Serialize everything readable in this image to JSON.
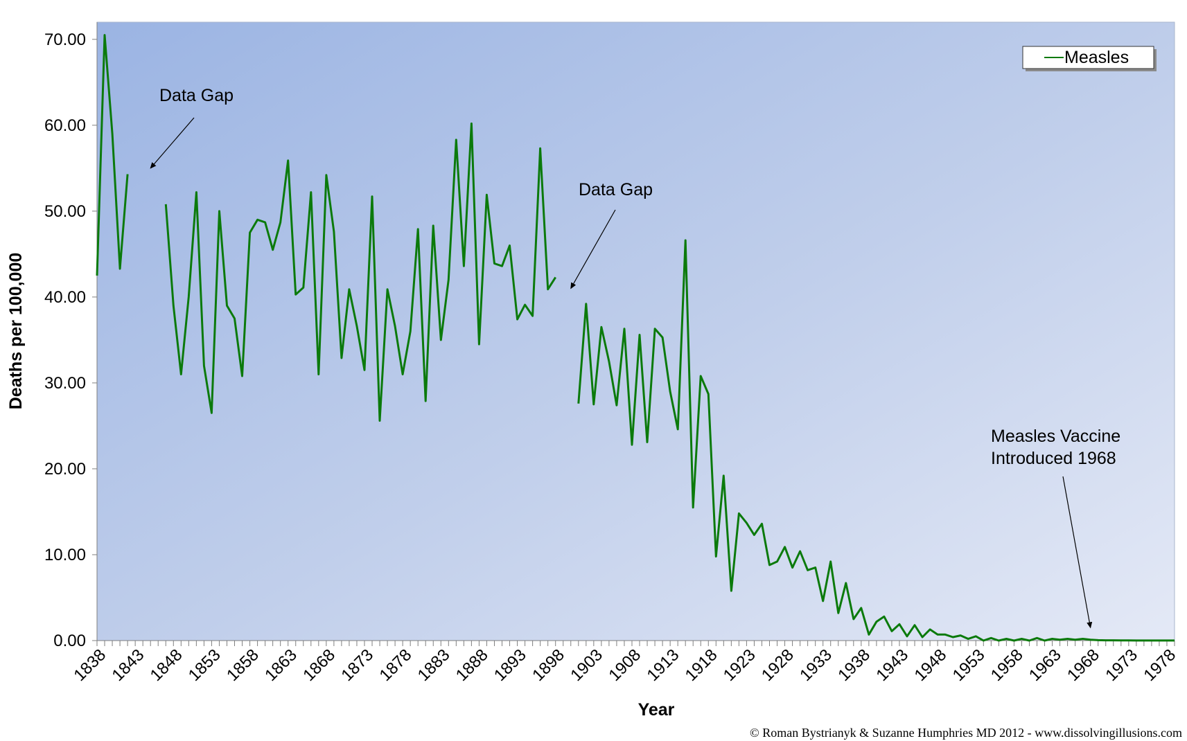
{
  "chart_data": {
    "type": "line",
    "title": "",
    "xlabel": "Year",
    "ylabel": "Deaths per 100,000",
    "xlim": [
      1838,
      1979
    ],
    "ylim": [
      0,
      72
    ],
    "y_ticks": [
      "0.00",
      "10.00",
      "20.00",
      "30.00",
      "40.00",
      "50.00",
      "60.00",
      "70.00"
    ],
    "x_ticks": [
      "1838",
      "1843",
      "1848",
      "1853",
      "1858",
      "1863",
      "1868",
      "1873",
      "1878",
      "1883",
      "1888",
      "1893",
      "1898",
      "1903",
      "1908",
      "1913",
      "1918",
      "1923",
      "1928",
      "1933",
      "1938",
      "1943",
      "1948",
      "1953",
      "1958",
      "1963",
      "1968",
      "1973",
      "1978"
    ],
    "legend": {
      "position": "top-right",
      "entries": [
        "Measles"
      ]
    },
    "grid": false,
    "series": [
      {
        "name": "Measles",
        "color": "#0b7a0b",
        "segments": [
          [
            [
              1838,
              42.5
            ],
            [
              1839,
              70.5
            ],
            [
              1840,
              59.0
            ],
            [
              1841,
              43.3
            ],
            [
              1842,
              54.3
            ]
          ],
          [
            [
              1847,
              50.8
            ],
            [
              1848,
              39.0
            ],
            [
              1849,
              31.0
            ],
            [
              1850,
              40.0
            ],
            [
              1851,
              52.2
            ],
            [
              1852,
              32.0
            ],
            [
              1853,
              26.5
            ],
            [
              1854,
              50.0
            ],
            [
              1855,
              39.0
            ],
            [
              1856,
              37.5
            ],
            [
              1857,
              30.8
            ],
            [
              1858,
              47.5
            ],
            [
              1859,
              49.0
            ],
            [
              1860,
              48.7
            ],
            [
              1861,
              45.5
            ],
            [
              1862,
              48.7
            ],
            [
              1863,
              55.9
            ],
            [
              1864,
              40.3
            ],
            [
              1865,
              41.1
            ],
            [
              1866,
              52.2
            ],
            [
              1867,
              31.0
            ],
            [
              1868,
              54.2
            ],
            [
              1869,
              47.6
            ],
            [
              1870,
              32.9
            ],
            [
              1871,
              40.9
            ],
            [
              1872,
              36.6
            ],
            [
              1873,
              31.5
            ],
            [
              1874,
              51.7
            ],
            [
              1875,
              25.6
            ],
            [
              1876,
              40.9
            ],
            [
              1877,
              36.6
            ],
            [
              1878,
              31.0
            ],
            [
              1879,
              36.0
            ],
            [
              1880,
              47.9
            ],
            [
              1881,
              27.9
            ],
            [
              1882,
              48.3
            ],
            [
              1883,
              35.0
            ],
            [
              1884,
              42.0
            ],
            [
              1885,
              58.3
            ],
            [
              1886,
              43.6
            ],
            [
              1887,
              60.2
            ],
            [
              1888,
              34.5
            ],
            [
              1889,
              51.9
            ],
            [
              1890,
              43.9
            ],
            [
              1891,
              43.6
            ],
            [
              1892,
              46.0
            ],
            [
              1893,
              37.4
            ],
            [
              1894,
              39.1
            ],
            [
              1895,
              37.8
            ],
            [
              1896,
              57.3
            ],
            [
              1897,
              40.9
            ],
            [
              1898,
              42.3
            ]
          ],
          [
            [
              1901,
              27.6
            ],
            [
              1902,
              39.2
            ],
            [
              1903,
              27.5
            ],
            [
              1904,
              36.5
            ],
            [
              1905,
              32.5
            ],
            [
              1906,
              27.4
            ],
            [
              1907,
              36.3
            ],
            [
              1908,
              22.8
            ],
            [
              1909,
              35.6
            ],
            [
              1910,
              23.1
            ],
            [
              1911,
              36.3
            ],
            [
              1912,
              35.3
            ],
            [
              1913,
              29.0
            ],
            [
              1914,
              24.6
            ],
            [
              1915,
              46.6
            ],
            [
              1916,
              15.5
            ],
            [
              1917,
              30.8
            ],
            [
              1918,
              28.7
            ],
            [
              1919,
              9.8
            ],
            [
              1920,
              19.2
            ],
            [
              1921,
              5.8
            ],
            [
              1922,
              14.8
            ],
            [
              1923,
              13.7
            ],
            [
              1924,
              12.3
            ],
            [
              1925,
              13.6
            ],
            [
              1926,
              8.8
            ],
            [
              1927,
              9.2
            ],
            [
              1928,
              10.9
            ],
            [
              1929,
              8.5
            ],
            [
              1930,
              10.4
            ],
            [
              1931,
              8.2
            ],
            [
              1932,
              8.5
            ],
            [
              1933,
              4.6
            ],
            [
              1934,
              9.2
            ],
            [
              1935,
              3.2
            ],
            [
              1936,
              6.7
            ],
            [
              1937,
              2.5
            ],
            [
              1938,
              3.8
            ],
            [
              1939,
              0.7
            ],
            [
              1940,
              2.2
            ],
            [
              1941,
              2.8
            ],
            [
              1942,
              1.1
            ],
            [
              1943,
              1.9
            ],
            [
              1944,
              0.5
            ],
            [
              1945,
              1.8
            ],
            [
              1946,
              0.4
            ],
            [
              1947,
              1.3
            ],
            [
              1948,
              0.7
            ],
            [
              1949,
              0.7
            ],
            [
              1950,
              0.4
            ],
            [
              1951,
              0.6
            ],
            [
              1952,
              0.2
            ],
            [
              1953,
              0.5
            ],
            [
              1954,
              0.0
            ],
            [
              1955,
              0.3
            ],
            [
              1956,
              0.0
            ],
            [
              1957,
              0.2
            ],
            [
              1958,
              0.0
            ],
            [
              1959,
              0.2
            ],
            [
              1960,
              0.0
            ],
            [
              1961,
              0.3
            ],
            [
              1962,
              0.0
            ],
            [
              1963,
              0.2
            ],
            [
              1964,
              0.1
            ],
            [
              1965,
              0.2
            ],
            [
              1966,
              0.1
            ],
            [
              1967,
              0.2
            ],
            [
              1968,
              0.1
            ],
            [
              1969,
              0.05
            ],
            [
              1970,
              0.03
            ],
            [
              1971,
              0.03
            ],
            [
              1972,
              0.02
            ],
            [
              1973,
              0.02
            ],
            [
              1974,
              0.01
            ],
            [
              1975,
              0.01
            ],
            [
              1976,
              0.01
            ],
            [
              1977,
              0.01
            ],
            [
              1978,
              0.01
            ],
            [
              1979,
              0.01
            ]
          ]
        ]
      }
    ],
    "annotations": [
      {
        "lines": [
          "Data Gap"
        ],
        "arrow_to": [
          1845,
          55.0
        ]
      },
      {
        "lines": [
          "Data Gap"
        ],
        "arrow_to": [
          1900,
          41.0
        ]
      },
      {
        "lines": [
          "Measles Vaccine",
          "Introduced 1968"
        ],
        "arrow_to": [
          1968,
          1.5
        ]
      }
    ],
    "credit": "© Roman Bystrianyk & Suzanne Humphries MD 2012 - www.dissolvingillusions.com"
  }
}
